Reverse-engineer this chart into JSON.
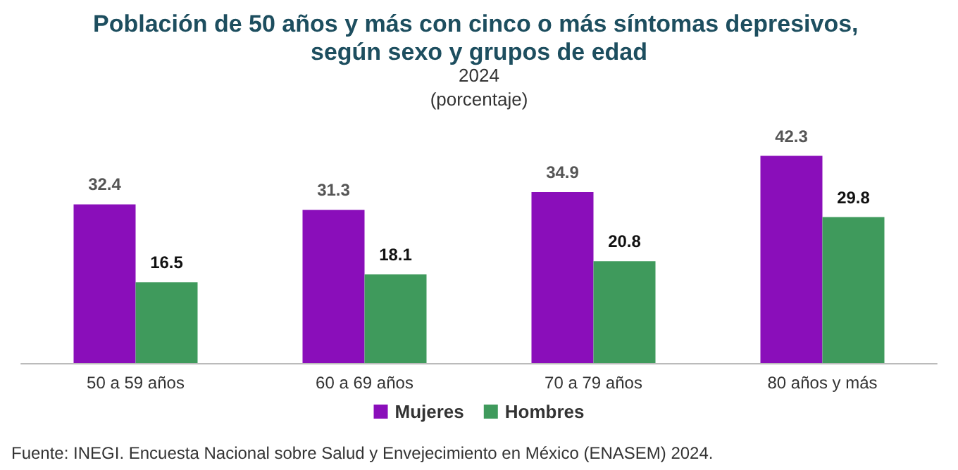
{
  "chart_data": {
    "type": "bar",
    "title": "Población de 50 años y más con cinco o más síntomas depresivos, según sexo y grupos de edad",
    "subtitle": "2024\n(porcentaje)",
    "categories": [
      "50 a 59 años",
      "60 a 69 años",
      "70 a 79 años",
      "80 años y más"
    ],
    "series": [
      {
        "name": "Mujeres",
        "color": "#8a0eba",
        "values": [
          32.4,
          31.3,
          34.9,
          42.3
        ]
      },
      {
        "name": "Hombres",
        "color": "#3f9a5c",
        "values": [
          16.5,
          18.1,
          20.8,
          29.8
        ]
      }
    ],
    "data_labels": true,
    "legend": "bottom",
    "annotations": [
      "Fuente: INEGI. Encuesta Nacional sobre Salud y Envejecimiento en México (ENASEM) 2024."
    ]
  }
}
